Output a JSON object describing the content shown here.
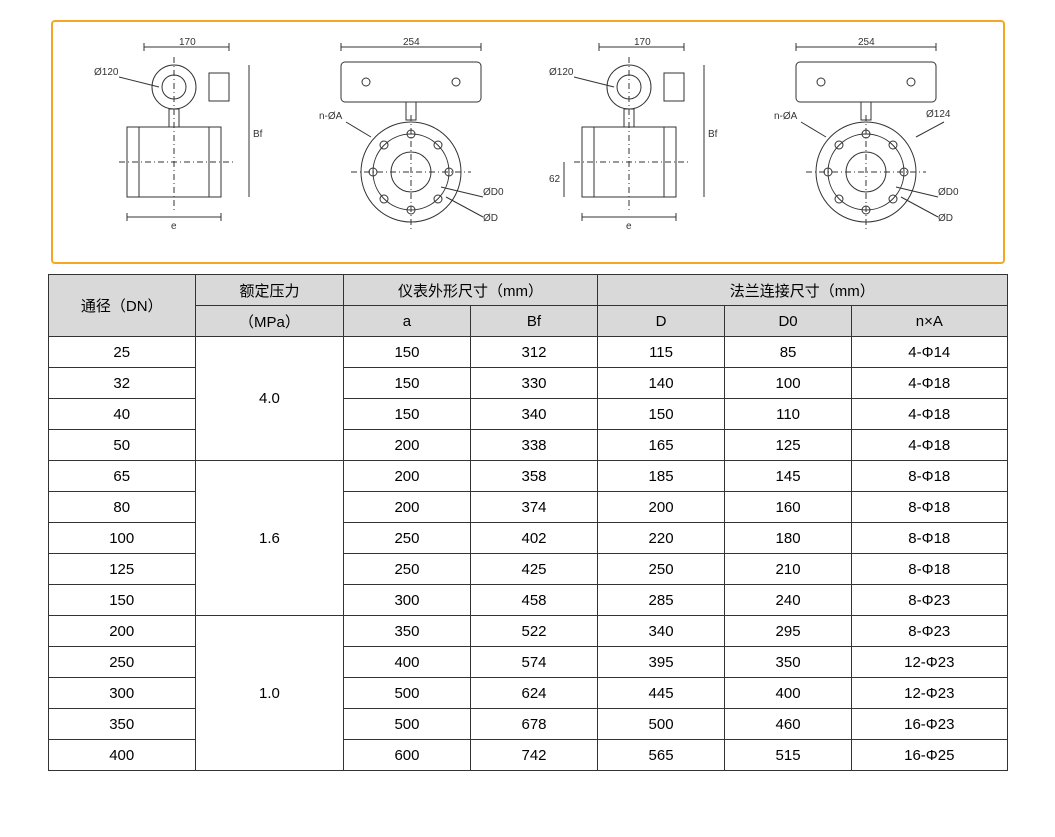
{
  "diagram": {
    "border_color": "#f5a623",
    "stroke_color": "#333333",
    "dimensions": {
      "top_width_small": "170",
      "top_width_large": "254",
      "diameter_small": "Ø120",
      "diameter_other": "Ø124",
      "height_label": "Bf",
      "base_label": "e",
      "offset_label": "62",
      "bolt_label": "n-ØA",
      "d_label": "ØD",
      "d0_label": "ØD0"
    }
  },
  "table": {
    "header_bg": "#d9d9d9",
    "border_color": "#333333",
    "header": {
      "dn": "通径（DN）",
      "pressure": "额定压力",
      "pressure_unit": "（MPa）",
      "inst_dims": "仪表外形尺寸（mm）",
      "flange_dims": "法兰连接尺寸（mm）",
      "a": "a",
      "bf": "Bf",
      "d": "D",
      "d0": "D0",
      "na": "n×A"
    },
    "pressure_groups": [
      {
        "value": "4.0",
        "rowspan": 4
      },
      {
        "value": "1.6",
        "rowspan": 5
      },
      {
        "value": "1.0",
        "rowspan": 5
      }
    ],
    "rows": [
      {
        "dn": "25",
        "a": "150",
        "bf": "312",
        "d": "115",
        "d0": "85",
        "na": "4-Φ14"
      },
      {
        "dn": "32",
        "a": "150",
        "bf": "330",
        "d": "140",
        "d0": "100",
        "na": "4-Φ18"
      },
      {
        "dn": "40",
        "a": "150",
        "bf": "340",
        "d": "150",
        "d0": "110",
        "na": "4-Φ18"
      },
      {
        "dn": "50",
        "a": "200",
        "bf": "338",
        "d": "165",
        "d0": "125",
        "na": "4-Φ18"
      },
      {
        "dn": "65",
        "a": "200",
        "bf": "358",
        "d": "185",
        "d0": "145",
        "na": "8-Φ18"
      },
      {
        "dn": "80",
        "a": "200",
        "bf": "374",
        "d": "200",
        "d0": "160",
        "na": "8-Φ18"
      },
      {
        "dn": "100",
        "a": "250",
        "bf": "402",
        "d": "220",
        "d0": "180",
        "na": "8-Φ18"
      },
      {
        "dn": "125",
        "a": "250",
        "bf": "425",
        "d": "250",
        "d0": "210",
        "na": "8-Φ18"
      },
      {
        "dn": "150",
        "a": "300",
        "bf": "458",
        "d": "285",
        "d0": "240",
        "na": "8-Φ23"
      },
      {
        "dn": "200",
        "a": "350",
        "bf": "522",
        "d": "340",
        "d0": "295",
        "na": "8-Φ23"
      },
      {
        "dn": "250",
        "a": "400",
        "bf": "574",
        "d": "395",
        "d0": "350",
        "na": "12-Φ23"
      },
      {
        "dn": "300",
        "a": "500",
        "bf": "624",
        "d": "445",
        "d0": "400",
        "na": "12-Φ23"
      },
      {
        "dn": "350",
        "a": "500",
        "bf": "678",
        "d": "500",
        "d0": "460",
        "na": "16-Φ23"
      },
      {
        "dn": "400",
        "a": "600",
        "bf": "742",
        "d": "565",
        "d0": "515",
        "na": "16-Φ25"
      }
    ]
  }
}
